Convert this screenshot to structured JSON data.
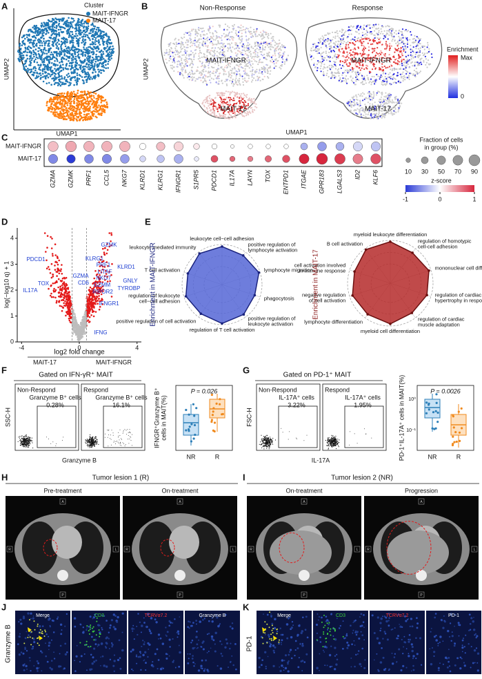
{
  "A": {
    "label": "A",
    "legend_title": "Cluster",
    "legend": [
      "MAIT-IFNGR",
      "MAIT-17"
    ],
    "colors": [
      "#1f77b4",
      "#ff7f0e"
    ],
    "xlabel": "UMAP1",
    "ylabel": "UMAP2"
  },
  "B": {
    "label": "B",
    "titles": [
      "Non-Response",
      "Response"
    ],
    "clusters": [
      "MAIT-IFNGR",
      "MAIT-17"
    ],
    "legend_title": "Enrichment",
    "legend_max": "Max",
    "legend_min": "0",
    "xlabel": "UMAP1",
    "ylabel": "UMAP2"
  },
  "C": {
    "label": "C",
    "groups": [
      "MAIT-IFNGR",
      "MAIT-17"
    ],
    "genes": [
      "GZMA",
      "GZMK",
      "PRF1",
      "CCL5",
      "NKG7",
      "KLRD1",
      "KLRG1",
      "IFNGR1",
      "S1PR5",
      "PDCD1",
      "IL17A",
      "LAYN",
      "TOX",
      "ENTPD1",
      "ITGAE",
      "GPR183",
      "LGALS3",
      "ID2",
      "KLF6"
    ],
    "fraction": [
      [
        75,
        85,
        80,
        80,
        80,
        25,
        50,
        60,
        20,
        15,
        5,
        10,
        10,
        10,
        30,
        55,
        45,
        60,
        60
      ],
      [
        60,
        50,
        55,
        60,
        55,
        20,
        35,
        55,
        10,
        30,
        15,
        15,
        25,
        35,
        70,
        90,
        80,
        70,
        75
      ]
    ],
    "zscore": [
      [
        0.3,
        0.4,
        0.35,
        0.35,
        0.35,
        0,
        0.3,
        0.2,
        0.1,
        0,
        0,
        0,
        0,
        0,
        -0.4,
        -0.5,
        -0.4,
        -0.2,
        -0.3
      ],
      [
        -0.6,
        -1,
        -0.6,
        -0.6,
        -0.5,
        -0.2,
        -0.3,
        -0.4,
        -0.1,
        0.8,
        0.7,
        0.6,
        0.7,
        0.8,
        1,
        1,
        0.9,
        0.6,
        0.8
      ]
    ],
    "size_title": [
      "Fraction of cells",
      "in group (%)"
    ],
    "size_ticks": [
      10,
      30,
      50,
      70,
      90
    ],
    "color_title": "z-score",
    "color_ticks": [
      -1,
      0,
      1
    ]
  },
  "D": {
    "label": "D",
    "genes": [
      "PDCD1",
      "TOX",
      "IL17A",
      "GZMK",
      "KLRG1",
      "PRF1",
      "KLRD1",
      "LITAF",
      "GZMA",
      "NKG7",
      "CD6",
      "GNLY",
      "GZMM",
      "TYROBP",
      "RIPOR2",
      "IFNGR1",
      "IFNG"
    ],
    "xlabel": "log2 fold change",
    "ylabel": "log(−log10 q) + 1",
    "groups": [
      "MAIT-17",
      "MAIT-IFNGR"
    ],
    "xlim": [
      -4.3,
      4.3
    ],
    "xticks": [
      -4,
      0,
      4
    ],
    "ylim": [
      0,
      4.4
    ],
    "yticks": [
      0,
      1,
      2,
      3,
      4
    ]
  },
  "E": {
    "label": "E",
    "left_axis": "Enrichment in MAIT-IFNGR",
    "right_axis": "Enrichment in MAIT-17",
    "left_terms": [
      [
        "leukocyte cell−cell adhesion"
      ],
      [
        "positive regulation of",
        "lymphocyte activation"
      ],
      [
        "lymphocyte migration"
      ],
      [
        "phagocytosis"
      ],
      [
        "positive regulation of",
        "leukocyte activation"
      ],
      [
        "regulation of T cell activation"
      ],
      [
        "positive regulation of cell activation"
      ],
      [
        "regulation of leukocyte",
        "cell−cell adhesion"
      ],
      [
        "T cell activation"
      ],
      [
        "leukocyte mediated immunity"
      ]
    ],
    "right_terms": [
      [
        "myeloid leukocyte differentiation"
      ],
      [
        "regulation of homotypic",
        "cell-cell adhesion"
      ],
      [
        "mononuclear cell differentiation"
      ],
      [
        "regulation of cardiac muscle",
        "hypertrophy in response to stress"
      ],
      [
        "regulation of cardiac",
        "muscle adaptation"
      ],
      [
        "myeloid cell differentiation"
      ],
      [
        "lymphocyte differentiation"
      ],
      [
        "negative regulation",
        "of cell activation"
      ],
      [
        "cell activation involved",
        "in immune response"
      ],
      [
        "B cell activation"
      ]
    ]
  },
  "F": {
    "label": "F",
    "gate": "Gated on IFN-γR⁺ MAIT",
    "panels": [
      "Non-Respond",
      "Respond"
    ],
    "gate_name": "Granzyme B⁺ cells",
    "percents": [
      "0.28%",
      "16.1%"
    ],
    "ylabel": "SSC-H",
    "xlabel": "Granzyme B",
    "p": "P = 0.026",
    "box_ylabel": [
      "IFNGR⁺Granzyme B⁺",
      "cells in MAIT(%)"
    ],
    "categories": [
      "NR",
      "R"
    ]
  },
  "G": {
    "label": "G",
    "gate": "Gated on PD-1⁺ MAIT",
    "panels": [
      "Non-Respond",
      "Respond"
    ],
    "gate_name": "IL-17A⁺ cells",
    "percents": [
      "3.22%",
      "1.95%"
    ],
    "ylabel": "FSC-H",
    "xlabel": "IL-17A",
    "p": "P = 0.0026",
    "box_ylabel": [
      "PD-1⁺IL-17A⁺ cells in MAIT(%)"
    ],
    "categories": [
      "NR",
      "R"
    ],
    "yticks": [
      "10⁰",
      "10⁻¹"
    ]
  },
  "H": {
    "label": "H",
    "title": "Tumor lesion 1 (R)",
    "panels": [
      "Pre-treatment",
      "On-treatment"
    ],
    "orientation": [
      "A",
      "R",
      "L",
      "P"
    ]
  },
  "I": {
    "label": "I",
    "title": "Tumor lesion 2 (NR)",
    "panels": [
      "On-treatment",
      "Progression"
    ],
    "orientation": [
      "A",
      "R",
      "L",
      "P"
    ]
  },
  "J": {
    "label": "J",
    "side": "Granzyme B",
    "channels": [
      "Merge",
      "CD3",
      "TCRVα7.2",
      "Granzyme B"
    ]
  },
  "K": {
    "label": "K",
    "side": "PD-1",
    "channels": [
      "Merge",
      "CD3",
      "TCRVα7.2",
      "PD-1"
    ]
  }
}
